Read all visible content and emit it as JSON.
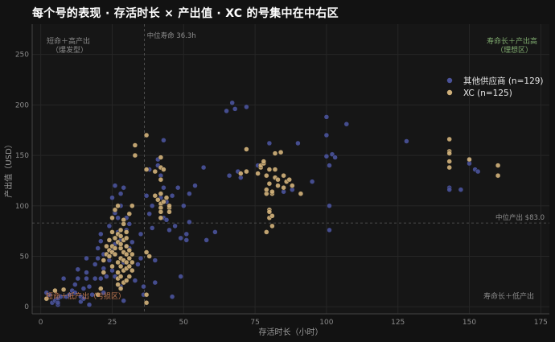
{
  "chart_data": {
    "type": "scatter",
    "title": "每个号的表现 · 存活时长 × 产出值 · XC 的号集中在中右区",
    "xlabel": "存活时长（小时）",
    "ylabel": "产出值（USD）",
    "xlim": [
      -3,
      178
    ],
    "ylim": [
      -7,
      280
    ],
    "x_ticks": [
      0,
      25,
      50,
      75,
      100,
      125,
      150,
      175
    ],
    "y_ticks": [
      0,
      50,
      100,
      150,
      200,
      250
    ],
    "grid": true,
    "legend_position": "top-right",
    "median_x": 36.3,
    "median_y": 83.0,
    "median_x_label": "中位寿命 36.3h",
    "median_y_label": "中位产出 $83.0",
    "quadrant_labels": {
      "top_left": [
        "短命＋高产出",
        "（爆发型）"
      ],
      "top_right": [
        "寿命长＋产出高",
        "（理想区）"
      ],
      "bottom_left": [
        "短命＋低产出（亏损区）"
      ],
      "bottom_right": [
        "寿命长＋低产出"
      ]
    },
    "colors": {
      "other": "#4a5299",
      "xc": "#cfb07a",
      "top_right_label": "#7faa6e",
      "bottom_left_label": "#c47a52",
      "neutral_label": "#8a8a8a"
    },
    "series": [
      {
        "name": "其他供应商 (n=129)",
        "color": "#4a5299",
        "points": [
          [
            2,
            14
          ],
          [
            3,
            12
          ],
          [
            4,
            4
          ],
          [
            5,
            6
          ],
          [
            6,
            8
          ],
          [
            6,
            2
          ],
          [
            6,
            4
          ],
          [
            7,
            10
          ],
          [
            8,
            28
          ],
          [
            9,
            10
          ],
          [
            10,
            12
          ],
          [
            11,
            16
          ],
          [
            12,
            14
          ],
          [
            12,
            22
          ],
          [
            13,
            37
          ],
          [
            13,
            28
          ],
          [
            14,
            10
          ],
          [
            14,
            5
          ],
          [
            15,
            18
          ],
          [
            15,
            8
          ],
          [
            16,
            34
          ],
          [
            16,
            28
          ],
          [
            16,
            48
          ],
          [
            17,
            20
          ],
          [
            17,
            2
          ],
          [
            18,
            12
          ],
          [
            19,
            28
          ],
          [
            19,
            42
          ],
          [
            20,
            58
          ],
          [
            20,
            48
          ],
          [
            21,
            65
          ],
          [
            21,
            72
          ],
          [
            21,
            28
          ],
          [
            22,
            14
          ],
          [
            22,
            38
          ],
          [
            22,
            52
          ],
          [
            23,
            30
          ],
          [
            24,
            46
          ],
          [
            24,
            80
          ],
          [
            25,
            108
          ],
          [
            25,
            56
          ],
          [
            25,
            36
          ],
          [
            26,
            120
          ],
          [
            26,
            93
          ],
          [
            26,
            62
          ],
          [
            26,
            30
          ],
          [
            27,
            88
          ],
          [
            27,
            74
          ],
          [
            28,
            112
          ],
          [
            28,
            100
          ],
          [
            28,
            66
          ],
          [
            28,
            20
          ],
          [
            29,
            44
          ],
          [
            29,
            118
          ],
          [
            29,
            6
          ],
          [
            30,
            88
          ],
          [
            30,
            76
          ],
          [
            30,
            60
          ],
          [
            31,
            82
          ],
          [
            31,
            58
          ],
          [
            32,
            64
          ],
          [
            33,
            26
          ],
          [
            34,
            42
          ],
          [
            35,
            72
          ],
          [
            35,
            48
          ],
          [
            36,
            12
          ],
          [
            36,
            20
          ],
          [
            37,
            110
          ],
          [
            38,
            136
          ],
          [
            38,
            92
          ],
          [
            39,
            100
          ],
          [
            39,
            78
          ],
          [
            40,
            46
          ],
          [
            40,
            24
          ],
          [
            41,
            146
          ],
          [
            41,
            140
          ],
          [
            42,
            130
          ],
          [
            42,
            108
          ],
          [
            43,
            118
          ],
          [
            43,
            88
          ],
          [
            43,
            165
          ],
          [
            44,
            104
          ],
          [
            44,
            86
          ],
          [
            45,
            76
          ],
          [
            46,
            110
          ],
          [
            46,
            10
          ],
          [
            47,
            80
          ],
          [
            48,
            118
          ],
          [
            49,
            68
          ],
          [
            49,
            30
          ],
          [
            50,
            100
          ],
          [
            51,
            72
          ],
          [
            51,
            66
          ],
          [
            52,
            84
          ],
          [
            52,
            112
          ],
          [
            54,
            120
          ],
          [
            57,
            138
          ],
          [
            58,
            66
          ],
          [
            61,
            74
          ],
          [
            65,
            194
          ],
          [
            66,
            130
          ],
          [
            67,
            202
          ],
          [
            68,
            196
          ],
          [
            69,
            134
          ],
          [
            70,
            128
          ],
          [
            72,
            198
          ],
          [
            76,
            140
          ],
          [
            80,
            162
          ],
          [
            85,
            114
          ],
          [
            88,
            116
          ],
          [
            90,
            162
          ],
          [
            95,
            124
          ],
          [
            100,
            188
          ],
          [
            100,
            170
          ],
          [
            100,
            149
          ],
          [
            101,
            140
          ],
          [
            101,
            100
          ],
          [
            101,
            76
          ],
          [
            102,
            151
          ],
          [
            103,
            148
          ],
          [
            107,
            181
          ],
          [
            128,
            164
          ],
          [
            143,
            118
          ],
          [
            143,
            116
          ],
          [
            147,
            116
          ],
          [
            150,
            145
          ],
          [
            150,
            142
          ],
          [
            152,
            136
          ],
          [
            153,
            134
          ]
        ]
      },
      {
        "name": "XC (n=125)",
        "color": "#cfb07a",
        "points": [
          [
            2,
            8
          ],
          [
            5,
            16
          ],
          [
            8,
            17
          ],
          [
            20,
            12
          ],
          [
            21,
            18
          ],
          [
            22,
            34
          ],
          [
            22,
            46
          ],
          [
            23,
            52
          ],
          [
            23,
            60
          ],
          [
            24,
            56
          ],
          [
            24,
            66
          ],
          [
            24,
            50
          ],
          [
            25,
            74
          ],
          [
            25,
            60
          ],
          [
            25,
            54
          ],
          [
            25,
            40
          ],
          [
            25,
            88
          ],
          [
            26,
            52
          ],
          [
            26,
            68
          ],
          [
            26,
            96
          ],
          [
            26,
            58
          ],
          [
            27,
            34
          ],
          [
            27,
            44
          ],
          [
            27,
            64
          ],
          [
            27,
            72
          ],
          [
            27,
            28
          ],
          [
            27,
            22
          ],
          [
            27,
            100
          ],
          [
            28,
            70
          ],
          [
            28,
            48
          ],
          [
            28,
            58
          ],
          [
            28,
            76
          ],
          [
            28,
            30
          ],
          [
            28,
            40
          ],
          [
            28,
            18
          ],
          [
            28,
            62
          ],
          [
            29,
            54
          ],
          [
            29,
            66
          ],
          [
            29,
            46
          ],
          [
            29,
            86
          ],
          [
            29,
            36
          ],
          [
            29,
            24
          ],
          [
            29,
            82
          ],
          [
            30,
            60
          ],
          [
            30,
            74
          ],
          [
            30,
            26
          ],
          [
            30,
            44
          ],
          [
            30,
            38
          ],
          [
            30,
            52
          ],
          [
            30,
            68
          ],
          [
            31,
            40
          ],
          [
            31,
            48
          ],
          [
            31,
            56
          ],
          [
            31,
            30
          ],
          [
            31,
            92
          ],
          [
            32,
            36
          ],
          [
            32,
            44
          ],
          [
            32,
            52
          ],
          [
            32,
            100
          ],
          [
            33,
            160
          ],
          [
            33,
            150
          ],
          [
            37,
            170
          ],
          [
            37,
            136
          ],
          [
            37,
            54
          ],
          [
            37,
            12
          ],
          [
            37,
            4
          ],
          [
            38,
            50
          ],
          [
            40,
            134
          ],
          [
            40,
            110
          ],
          [
            41,
            106
          ],
          [
            42,
            102
          ],
          [
            42,
            98
          ],
          [
            42,
            94
          ],
          [
            42,
            88
          ],
          [
            42,
            112
          ],
          [
            42,
            126
          ],
          [
            42,
            138
          ],
          [
            42,
            148
          ],
          [
            43,
            136
          ],
          [
            43,
            104
          ],
          [
            44,
            108
          ],
          [
            45,
            98
          ],
          [
            45,
            100
          ],
          [
            45,
            94
          ],
          [
            70,
            132
          ],
          [
            72,
            134
          ],
          [
            72,
            156
          ],
          [
            76,
            132
          ],
          [
            77,
            138
          ],
          [
            77,
            140
          ],
          [
            78,
            142
          ],
          [
            78,
            144
          ],
          [
            79,
            130
          ],
          [
            79,
            112
          ],
          [
            79,
            116
          ],
          [
            79,
            74
          ],
          [
            80,
            122
          ],
          [
            80,
            136
          ],
          [
            80,
            96
          ],
          [
            80,
            94
          ],
          [
            80,
            88
          ],
          [
            81,
            80
          ],
          [
            81,
            90
          ],
          [
            81,
            112
          ],
          [
            81,
            114
          ],
          [
            82,
            152
          ],
          [
            82,
            128
          ],
          [
            82,
            136
          ],
          [
            83,
            120
          ],
          [
            83,
            126
          ],
          [
            84,
            153
          ],
          [
            85,
            130
          ],
          [
            85,
            118
          ],
          [
            86,
            124
          ],
          [
            87,
            126
          ],
          [
            88,
            120
          ],
          [
            91,
            112
          ],
          [
            143,
            166
          ],
          [
            143,
            154
          ],
          [
            143,
            152
          ],
          [
            143,
            144
          ],
          [
            143,
            138
          ],
          [
            150,
            146
          ],
          [
            160,
            140
          ],
          [
            160,
            130
          ]
        ]
      }
    ]
  }
}
